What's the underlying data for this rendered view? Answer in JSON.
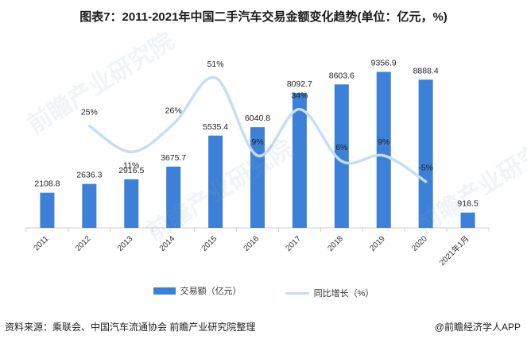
{
  "title": "图表7：2011-2021年中国二手汽车交易金额变化趋势(单位：亿元，%)",
  "source": "资料来源：乘联会、中国汽车流通协会 前瞻产业研究院整理",
  "brand": "@前瞻经济学人APP",
  "watermark": "前瞻产业研究院",
  "colors": {
    "bar": "#3c80d8",
    "line": "#c5ddf6",
    "axis": "#cfcfcf"
  },
  "chart_data": {
    "type": "bar",
    "categories": [
      "2011",
      "2012",
      "2013",
      "2014",
      "2015",
      "2016",
      "2017",
      "2018",
      "2019",
      "2020",
      "2021年1月"
    ],
    "series": [
      {
        "name": "交易额（亿元）",
        "type": "bar",
        "values": [
          2108.8,
          2636.3,
          2916.5,
          3675.7,
          5535.4,
          6040.8,
          8092.7,
          8603.6,
          9356.9,
          8888.4,
          918.5
        ],
        "labels": [
          "2108.8",
          "2636.3",
          "2916.5",
          "3675.7",
          "5535.4",
          "6040.8",
          "8092.7",
          "8603.6",
          "9356.9",
          "8888.4",
          "918.5"
        ]
      },
      {
        "name": "同比增长（%）",
        "type": "line",
        "values": [
          null,
          25,
          11,
          26,
          51,
          9,
          34,
          6,
          9,
          -5,
          null
        ],
        "labels": [
          "",
          "25%",
          "11%",
          "26%",
          "51%",
          "9%",
          "34%",
          "6%",
          "9%",
          "-5%",
          ""
        ]
      }
    ],
    "ylim": [
      0,
      10000
    ],
    "ylim_right": [
      -30,
      60
    ],
    "grid": false,
    "legend": "bottom"
  }
}
